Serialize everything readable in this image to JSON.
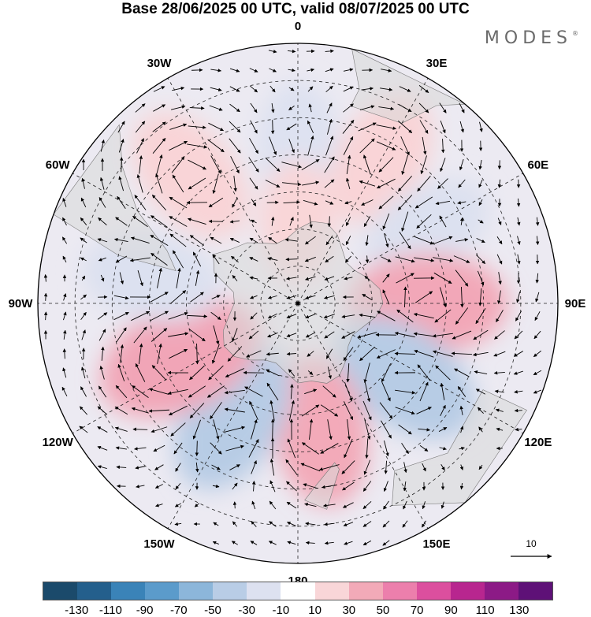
{
  "title": "Base 28/06/2025 00 UTC, valid 08/07/2025 00 UTC",
  "brand": "MODES",
  "brand_mark": "®",
  "map": {
    "projection": "south-polar-stereographic",
    "longitude_labels": [
      {
        "text": "0",
        "lon": 0
      },
      {
        "text": "30E",
        "lon": 30
      },
      {
        "text": "60E",
        "lon": 60
      },
      {
        "text": "90E",
        "lon": 90
      },
      {
        "text": "120E",
        "lon": 120
      },
      {
        "text": "150E",
        "lon": 150
      },
      {
        "text": "180",
        "lon": 180
      },
      {
        "text": "150W",
        "lon": -150
      },
      {
        "text": "120W",
        "lon": -120
      },
      {
        "text": "90W",
        "lon": -90
      },
      {
        "text": "60W",
        "lon": -60
      },
      {
        "text": "30W",
        "lon": -30
      }
    ],
    "reference_vector": {
      "label": "10",
      "value": 10
    },
    "anomaly_centers": [
      {
        "lon": 0,
        "lat": -48,
        "value": -50
      },
      {
        "lon": 30,
        "lat": -45,
        "value": 70
      },
      {
        "lon": 60,
        "lat": -50,
        "value": -60
      },
      {
        "lon": 90,
        "lat": -55,
        "value": 110
      },
      {
        "lon": 125,
        "lat": -55,
        "value": -110
      },
      {
        "lon": 170,
        "lat": -55,
        "value": 90
      },
      {
        "lon": -150,
        "lat": -55,
        "value": -110
      },
      {
        "lon": -115,
        "lat": -55,
        "value": 130
      },
      {
        "lon": -80,
        "lat": -50,
        "value": -70
      },
      {
        "lon": -40,
        "lat": -45,
        "value": 80
      },
      {
        "lon": 0,
        "lat": -68,
        "value": 30
      }
    ]
  },
  "colorbar": {
    "colors": [
      "#1b4a6b",
      "#245f8c",
      "#3a83b8",
      "#5b9bcb",
      "#8cb6da",
      "#b9cde6",
      "#dde1f0",
      "#ffffff",
      "#f9d6d8",
      "#f2aab8",
      "#ec7fac",
      "#dc4f9e",
      "#b8268f",
      "#8c1a86",
      "#5e1177"
    ],
    "tick_labels": [
      "-130",
      "-110",
      "-90",
      "-70",
      "-50",
      "-30",
      "-10",
      "10",
      "30",
      "50",
      "70",
      "90",
      "110",
      "130"
    ]
  }
}
